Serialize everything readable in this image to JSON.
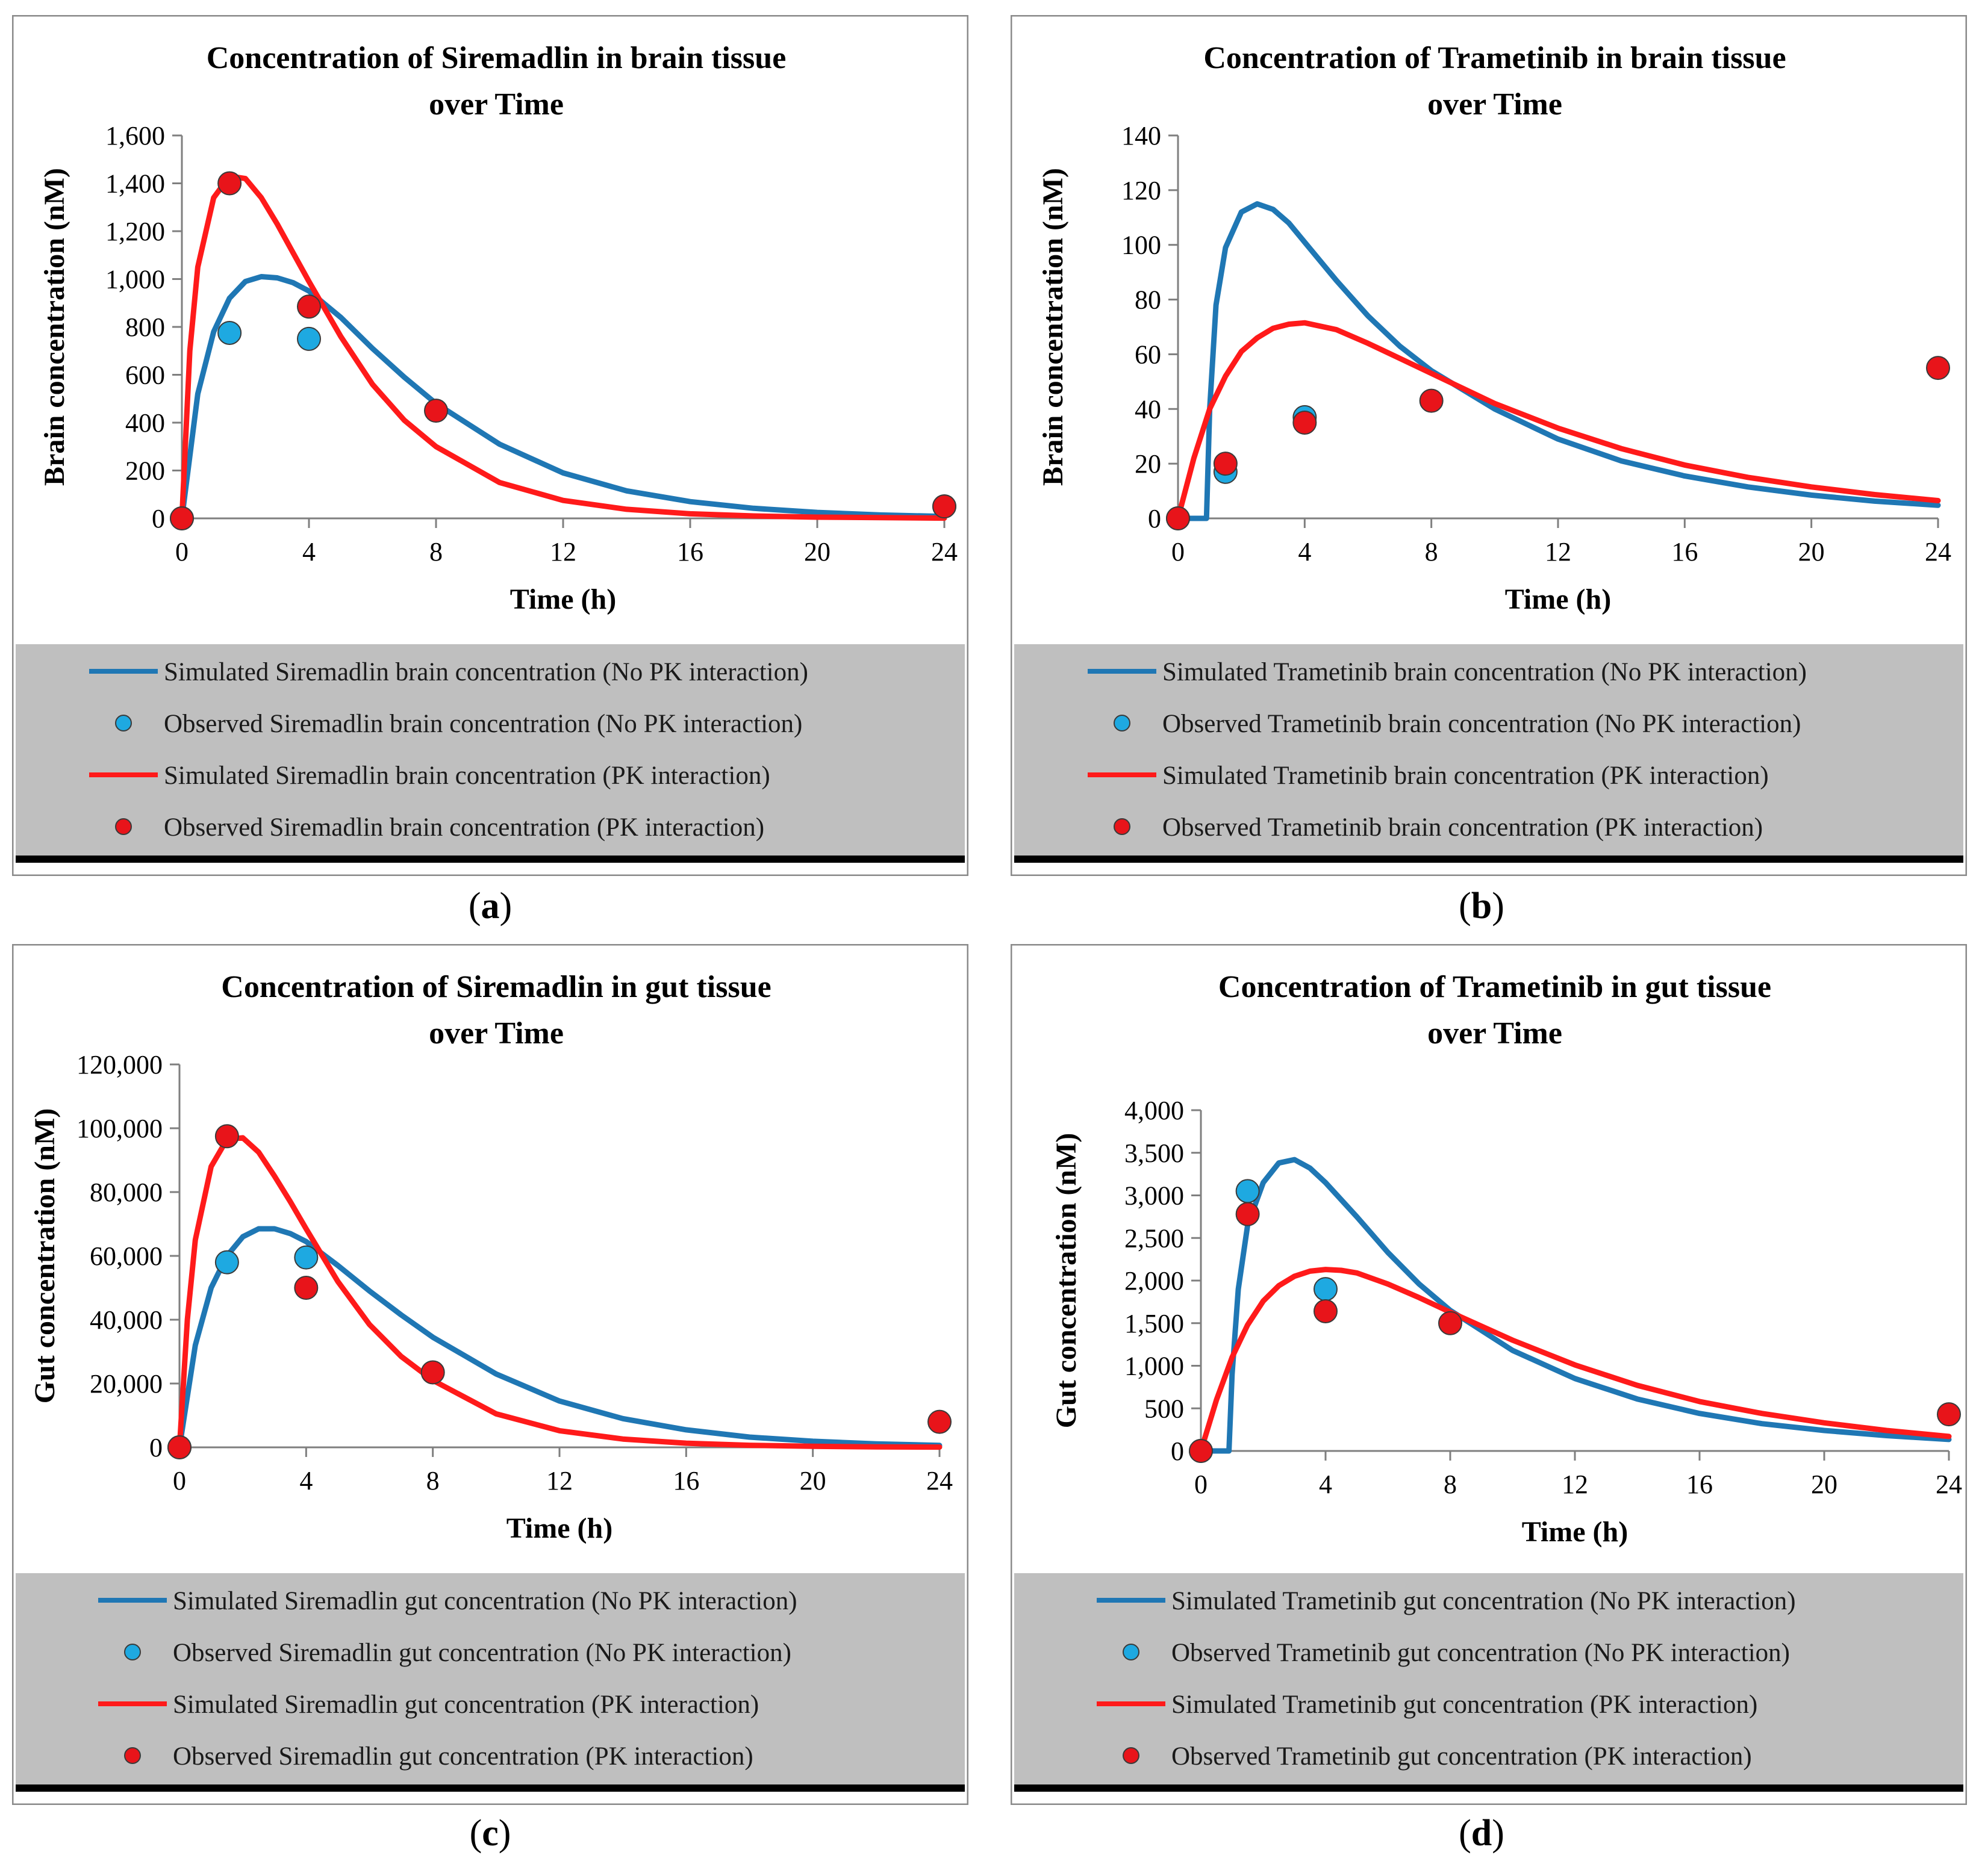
{
  "colors": {
    "no_pk_line": "#1f77b4",
    "no_pk_marker": "#1ea9e1",
    "pk_line": "#ff1a1a",
    "pk_marker": "#e8141a",
    "legend_bg": "#bfbfbf"
  },
  "chart_data": [
    {
      "id": "a",
      "type": "line",
      "caption": "a",
      "title": [
        "Concentration of Siremadlin in brain tissue",
        "over Time"
      ],
      "xlabel": "Time (h)",
      "ylabel": "Brain concentration (nM)",
      "xlim": [
        0,
        24
      ],
      "xticks": [
        0,
        4,
        8,
        12,
        16,
        20,
        24
      ],
      "ylim": [
        0,
        1600
      ],
      "yticks": [
        0,
        200,
        400,
        600,
        800,
        1000,
        1200,
        1400,
        1600
      ],
      "ytick_labels": [
        "0",
        "200",
        "400",
        "600",
        "800",
        "1,000",
        "1,200",
        "1,400",
        "1,600"
      ],
      "series": [
        {
          "name": "Simulated Siremadlin brain concentration (No PK interaction)",
          "kind": "line",
          "color": "#1f77b4",
          "x": [
            0,
            0.5,
            1,
            1.5,
            2,
            2.5,
            3,
            3.5,
            4,
            5,
            6,
            7,
            8,
            10,
            12,
            14,
            16,
            18,
            20,
            22,
            24
          ],
          "y": [
            0,
            520,
            780,
            920,
            990,
            1010,
            1005,
            985,
            950,
            840,
            710,
            590,
            480,
            310,
            190,
            115,
            70,
            42,
            25,
            14,
            8
          ]
        },
        {
          "name": "Observed Siremadlin brain concentration (No PK interaction)",
          "kind": "scatter",
          "color": "#1ea9e1",
          "x": [
            0,
            1.5,
            4,
            24
          ],
          "y": [
            0,
            775,
            750,
            50
          ]
        },
        {
          "name": "Simulated Siremadlin brain concentration (PK interaction)",
          "kind": "line",
          "color": "#ff1a1a",
          "x": [
            0,
            0.25,
            0.5,
            1,
            1.5,
            2,
            2.5,
            3,
            3.5,
            4,
            5,
            6,
            7,
            8,
            10,
            12,
            14,
            16,
            18,
            20,
            22,
            24
          ],
          "y": [
            0,
            700,
            1050,
            1340,
            1430,
            1420,
            1340,
            1230,
            1110,
            990,
            760,
            560,
            410,
            300,
            150,
            75,
            38,
            19,
            10,
            5,
            3,
            1
          ]
        },
        {
          "name": "Observed Siremadlin brain concentration (PK interaction)",
          "kind": "scatter",
          "color": "#e8141a",
          "x": [
            0,
            1.5,
            4,
            8,
            24
          ],
          "y": [
            0,
            1400,
            885,
            450,
            50
          ]
        }
      ]
    },
    {
      "id": "b",
      "type": "line",
      "caption": "b",
      "title": [
        "Concentration of Trametinib in brain tissue",
        "over Time"
      ],
      "xlabel": "Time (h)",
      "ylabel": "Brain concentration (nM)",
      "xlim": [
        0,
        24
      ],
      "xticks": [
        0,
        4,
        8,
        12,
        16,
        20,
        24
      ],
      "ylim": [
        0,
        140
      ],
      "yticks": [
        0,
        20,
        40,
        60,
        80,
        100,
        120,
        140
      ],
      "ytick_labels": [
        "0",
        "20",
        "40",
        "60",
        "80",
        "100",
        "120",
        "140"
      ],
      "series": [
        {
          "name": "Simulated Trametinib brain concentration (No PK interaction)",
          "kind": "line",
          "color": "#1f77b4",
          "x": [
            0,
            0.9,
            1.0,
            1.2,
            1.5,
            2,
            2.5,
            3,
            3.5,
            4,
            5,
            6,
            7,
            8,
            10,
            12,
            14,
            16,
            18,
            20,
            22,
            24
          ],
          "y": [
            0,
            0,
            40,
            78,
            99,
            112,
            115,
            113,
            108,
            101,
            87,
            74,
            63,
            54,
            40,
            29,
            21,
            15.5,
            11.5,
            8.5,
            6.3,
            4.8
          ]
        },
        {
          "name": "Observed Trametinib brain concentration (No PK interaction)",
          "kind": "scatter",
          "color": "#1ea9e1",
          "x": [
            0,
            1.5,
            4
          ],
          "y": [
            0,
            17,
            37
          ]
        },
        {
          "name": "Simulated Trametinib brain concentration (PK interaction)",
          "kind": "line",
          "color": "#ff1a1a",
          "x": [
            0,
            0.5,
            1,
            1.5,
            2,
            2.5,
            3,
            3.5,
            4,
            5,
            6,
            7,
            8,
            10,
            12,
            14,
            16,
            18,
            20,
            22,
            24
          ],
          "y": [
            0,
            22,
            40,
            52,
            61,
            66,
            69.5,
            71,
            71.5,
            69,
            64,
            58.5,
            53,
            42,
            33,
            25.5,
            19.5,
            15,
            11.5,
            8.7,
            6.5
          ]
        },
        {
          "name": "Observed Trametinib brain concentration (PK interaction)",
          "kind": "scatter",
          "color": "#e8141a",
          "x": [
            0,
            1.5,
            4,
            8,
            24
          ],
          "y": [
            0,
            20,
            35,
            43,
            55
          ]
        }
      ]
    },
    {
      "id": "c",
      "type": "line",
      "caption": "c",
      "title": [
        "Concentration of Siremadlin in gut tissue",
        "over Time"
      ],
      "xlabel": "Time (h)",
      "ylabel": "Gut concentration (nM)",
      "xlim": [
        0,
        24
      ],
      "xticks": [
        0,
        4,
        8,
        12,
        16,
        20,
        24
      ],
      "ylim": [
        0,
        120000
      ],
      "yticks": [
        0,
        20000,
        40000,
        60000,
        80000,
        100000,
        120000
      ],
      "ytick_labels": [
        "0",
        "20,000",
        "40,000",
        "60,000",
        "80,000",
        "100,000",
        "120,000"
      ],
      "series": [
        {
          "name": "Simulated Siremadlin gut concentration (No PK interaction)",
          "kind": "line",
          "color": "#1f77b4",
          "x": [
            0,
            0.5,
            1,
            1.5,
            2,
            2.5,
            3,
            3.5,
            4,
            5,
            6,
            7,
            8,
            10,
            12,
            14,
            16,
            18,
            20,
            22,
            24
          ],
          "y": [
            0,
            32000,
            50000,
            60000,
            66000,
            68500,
            68500,
            67000,
            64500,
            57000,
            49000,
            41500,
            34500,
            23000,
            14500,
            9000,
            5500,
            3200,
            1900,
            1100,
            600
          ]
        },
        {
          "name": "Observed Siremadlin gut concentration (No PK interaction)",
          "kind": "scatter",
          "color": "#1ea9e1",
          "x": [
            0,
            1.5,
            4
          ],
          "y": [
            0,
            58000,
            59500
          ]
        },
        {
          "name": "Simulated Siremadlin gut concentration (PK interaction)",
          "kind": "line",
          "color": "#ff1a1a",
          "x": [
            0,
            0.25,
            0.5,
            1,
            1.5,
            2,
            2.5,
            3,
            3.5,
            4,
            5,
            6,
            7,
            8,
            10,
            12,
            14,
            16,
            18,
            20,
            22,
            24
          ],
          "y": [
            0,
            40000,
            65000,
            88000,
            96500,
            97000,
            92500,
            85000,
            77000,
            68500,
            52000,
            38500,
            28500,
            21000,
            10500,
            5200,
            2600,
            1300,
            650,
            320,
            160,
            80
          ]
        },
        {
          "name": "Observed Siremadlin gut concentration (PK interaction)",
          "kind": "scatter",
          "color": "#e8141a",
          "x": [
            0,
            1.5,
            4,
            8,
            24
          ],
          "y": [
            0,
            97500,
            50000,
            23500,
            8000
          ]
        }
      ]
    },
    {
      "id": "d",
      "type": "line",
      "caption": "d",
      "title": [
        "Concentration of Trametinib in gut tissue",
        "over Time"
      ],
      "xlabel": "Time (h)",
      "ylabel": "Gut concentration (nM)",
      "xlim": [
        0,
        24
      ],
      "xticks": [
        0,
        4,
        8,
        12,
        16,
        20,
        24
      ],
      "ylim": [
        0,
        4000
      ],
      "yticks": [
        0,
        500,
        1000,
        1500,
        2000,
        2500,
        3000,
        3500,
        4000
      ],
      "ytick_labels": [
        "0",
        "500",
        "1,000",
        "1,500",
        "2,000",
        "2,500",
        "3,000",
        "3,500",
        "4,000"
      ],
      "series": [
        {
          "name": "Simulated Trametinib gut concentration (No PK interaction)",
          "kind": "line",
          "color": "#1f77b4",
          "x": [
            0,
            0.9,
            1.0,
            1.2,
            1.5,
            2,
            2.5,
            3,
            3.5,
            4,
            5,
            6,
            7,
            8,
            10,
            12,
            14,
            16,
            18,
            20,
            22,
            24
          ],
          "y": [
            0,
            0,
            900,
            1900,
            2650,
            3150,
            3380,
            3420,
            3320,
            3150,
            2750,
            2330,
            1960,
            1650,
            1180,
            850,
            610,
            440,
            320,
            240,
            180,
            135
          ]
        },
        {
          "name": "Observed Trametinib gut concentration (No PK interaction)",
          "kind": "scatter",
          "color": "#1ea9e1",
          "x": [
            0,
            1.5,
            4
          ],
          "y": [
            0,
            3050,
            1900
          ]
        },
        {
          "name": "Simulated Trametinib gut concentration (PK interaction)",
          "kind": "line",
          "color": "#ff1a1a",
          "x": [
            0,
            0.5,
            1,
            1.5,
            2,
            2.5,
            3,
            3.5,
            4,
            4.5,
            5,
            6,
            7,
            8,
            10,
            12,
            14,
            16,
            18,
            20,
            22,
            24
          ],
          "y": [
            0,
            600,
            1100,
            1480,
            1760,
            1940,
            2050,
            2110,
            2130,
            2120,
            2090,
            1960,
            1800,
            1630,
            1300,
            1010,
            770,
            580,
            440,
            330,
            240,
            170
          ]
        },
        {
          "name": "Observed Trametinib gut concentration (PK interaction)",
          "kind": "scatter",
          "color": "#e8141a",
          "x": [
            0,
            1.5,
            4,
            8,
            24
          ],
          "y": [
            0,
            2780,
            1640,
            1500,
            430
          ]
        }
      ]
    }
  ]
}
